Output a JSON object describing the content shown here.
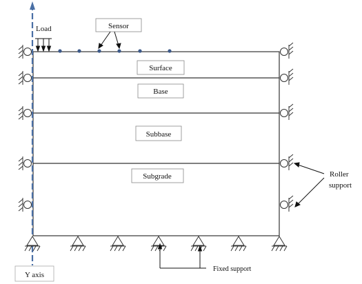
{
  "labels": {
    "load": "Load",
    "sensor": "Sensor",
    "roller_line1": "Roller",
    "roller_line2": "support",
    "fixed": "Fixed support",
    "y_axis": "Y axis"
  },
  "layers": [
    {
      "name": "Surface"
    },
    {
      "name": "Base"
    },
    {
      "name": "Subbase"
    },
    {
      "name": "Subgrade"
    }
  ],
  "colors": {
    "axis": "#4a6fa5",
    "sensor_dot": "#3d5a8a",
    "line": "#333333",
    "box_border": "#888888"
  }
}
